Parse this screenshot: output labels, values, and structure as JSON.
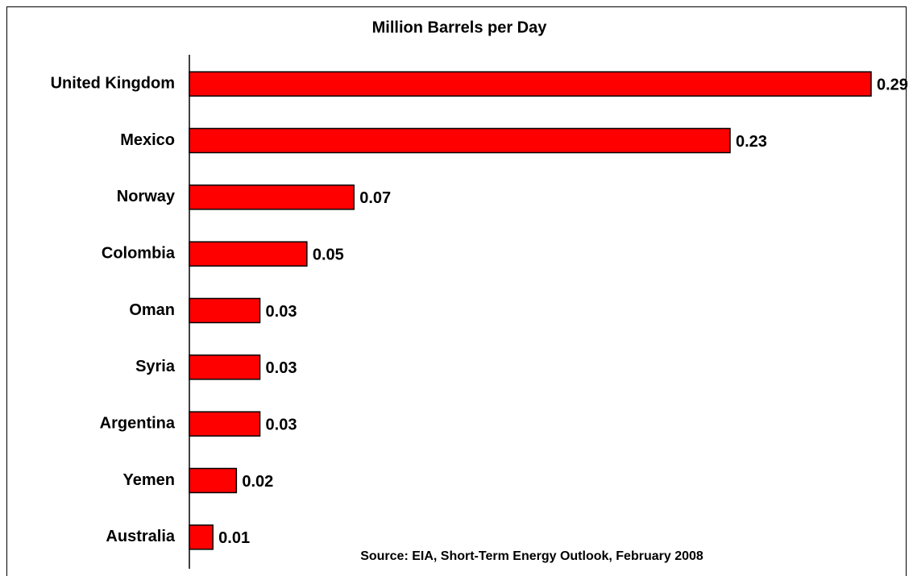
{
  "chart_data": {
    "type": "bar",
    "orientation": "horizontal",
    "title": "Million Barrels per Day",
    "categories": [
      "United Kingdom",
      "Mexico",
      "Norway",
      "Colombia",
      "Oman",
      "Syria",
      "Argentina",
      "Yemen",
      "Australia"
    ],
    "values": [
      0.29,
      0.23,
      0.07,
      0.05,
      0.03,
      0.03,
      0.03,
      0.02,
      0.01
    ],
    "color": "#ff0000",
    "xlim": [
      0,
      0.29
    ],
    "source": "Source: EIA, Short-Term Energy Outlook, February 2008"
  }
}
